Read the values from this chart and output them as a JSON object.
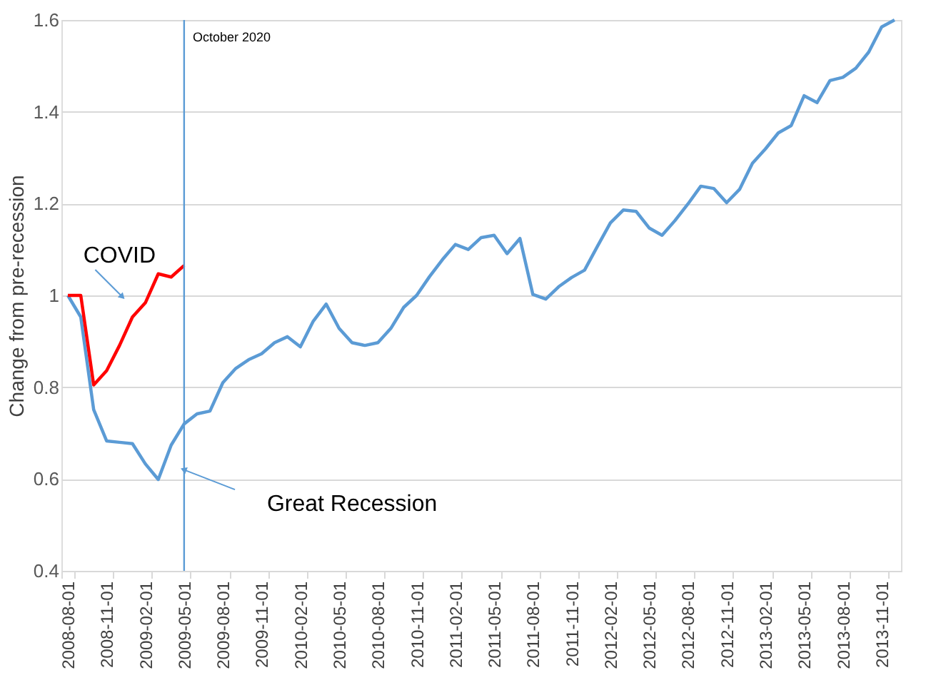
{
  "chart_data": {
    "type": "line",
    "ylabel": "Change from pre-recession",
    "categories": [
      "2008-08-01",
      null,
      null,
      "2008-11-01",
      null,
      null,
      "2009-02-01",
      null,
      null,
      "2009-05-01",
      null,
      null,
      "2009-08-01",
      null,
      null,
      "2009-11-01",
      null,
      null,
      "2010-02-01",
      null,
      null,
      "2010-05-01",
      null,
      null,
      "2010-08-01",
      null,
      null,
      "2010-11-01",
      null,
      null,
      "2011-02-01",
      null,
      null,
      "2011-05-01",
      null,
      null,
      "2011-08-01",
      null,
      null,
      "2011-11-01",
      null,
      null,
      "2012-02-01",
      null,
      null,
      "2012-05-01",
      null,
      null,
      "2012-08-01",
      null,
      null,
      "2012-11-01",
      null,
      null,
      "2013-02-01",
      null,
      null,
      "2013-05-01",
      null,
      null,
      "2013-08-01",
      null,
      null,
      "2013-11-01",
      null
    ],
    "series": [
      {
        "color": "#5b9bd5",
        "values": [
          1.0,
          0.953,
          0.751,
          0.683,
          0.68,
          0.677,
          0.633,
          0.599,
          0.674,
          0.72,
          0.742,
          0.748,
          0.81,
          0.841,
          0.86,
          0.873,
          0.897,
          0.91,
          0.888,
          0.944,
          0.981,
          0.928,
          0.897,
          0.891,
          0.897,
          0.928,
          0.974,
          1.0,
          1.041,
          1.078,
          1.111,
          1.1,
          1.126,
          1.131,
          1.091,
          1.124,
          1.002,
          0.992,
          1.019,
          1.039,
          1.055,
          1.107,
          1.158,
          1.186,
          1.183,
          1.147,
          1.131,
          1.163,
          1.199,
          1.238,
          1.233,
          1.202,
          1.231,
          1.288,
          1.319,
          1.354,
          1.37,
          1.435,
          1.42,
          1.468,
          1.475,
          1.495,
          1.53,
          1.585,
          1.6
        ]
      },
      {
        "color": "#ff0000",
        "values": [
          1.0,
          1.0,
          0.805,
          0.836,
          0.891,
          0.953,
          0.984,
          1.047,
          1.04,
          1.065,
          null,
          null,
          null,
          null,
          null,
          null,
          null,
          null,
          null,
          null,
          null,
          null,
          null,
          null,
          null,
          null,
          null,
          null,
          null,
          null,
          null,
          null,
          null,
          null,
          null,
          null,
          null,
          null,
          null,
          null,
          null,
          null,
          null,
          null,
          null,
          null,
          null,
          null,
          null,
          null,
          null,
          null,
          null,
          null,
          null,
          null,
          null,
          null,
          null,
          null,
          null,
          null,
          null,
          null,
          null
        ]
      }
    ],
    "ylim": [
      0.4,
      1.6
    ],
    "yticks": [
      0.4,
      0.6,
      0.8,
      1,
      1.2,
      1.4,
      1.6
    ],
    "grid": "y",
    "marker": "none",
    "line_style": "solid",
    "ref_lines": [
      {
        "axis": "x",
        "value": "2009-05-01",
        "label": "October 2020",
        "color": "#5b9bd5"
      }
    ],
    "annotations": [
      "COVID",
      "Great Recession"
    ]
  }
}
